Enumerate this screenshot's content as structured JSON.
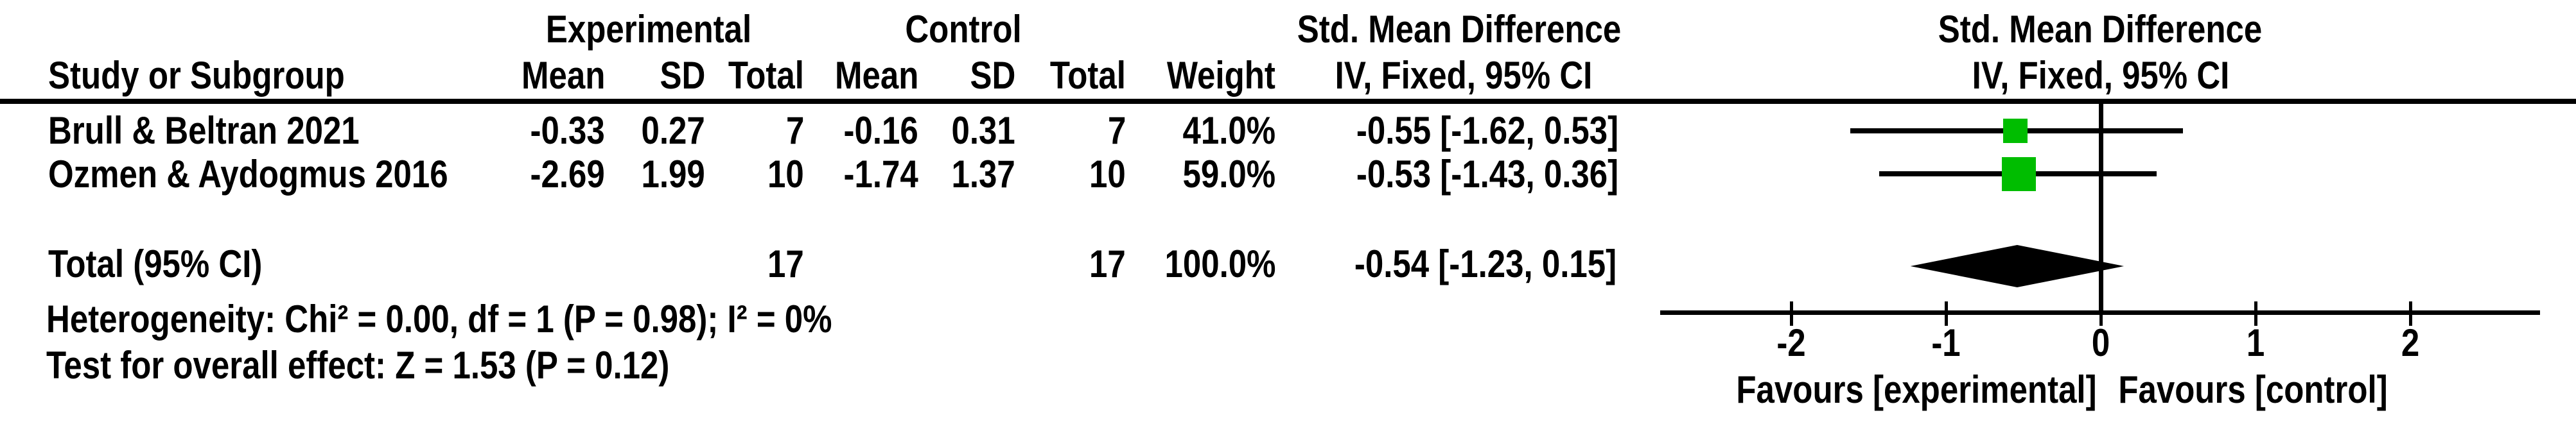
{
  "table": {
    "group_headers": {
      "experimental": "Experimental",
      "control": "Control",
      "smd_text": "Std. Mean Difference",
      "smd_plot": "Std. Mean Difference"
    },
    "columns": {
      "study": "Study or Subgroup",
      "mean_e": "Mean",
      "sd_e": "SD",
      "total_e": "Total",
      "mean_c": "Mean",
      "sd_c": "SD",
      "total_c": "Total",
      "weight": "Weight",
      "ci_text": "IV, Fixed, 95% CI",
      "ci_plot": "IV, Fixed, 95% CI"
    },
    "rows": [
      {
        "study": "Brull & Beltran 2021",
        "mean_e": "-0.33",
        "sd_e": "0.27",
        "total_e": "7",
        "mean_c": "-0.16",
        "sd_c": "0.31",
        "total_c": "7",
        "weight": "41.0%",
        "ci": "-0.55 [-1.62, 0.53]"
      },
      {
        "study": "Ozmen & Aydogmus 2016",
        "mean_e": "-2.69",
        "sd_e": "1.99",
        "total_e": "10",
        "mean_c": "-1.74",
        "sd_c": "1.37",
        "total_c": "10",
        "weight": "59.0%",
        "ci": "-0.53 [-1.43, 0.36]"
      }
    ],
    "total": {
      "label": "Total (95% CI)",
      "total_e": "17",
      "total_c": "17",
      "weight": "100.0%",
      "ci": "-0.54 [-1.23, 0.15]"
    },
    "heterogeneity": "Heterogeneity: Chi² = 0.00, df = 1 (P = 0.98); I² = 0%",
    "overall_effect": "Test for overall effect: Z = 1.53 (P = 0.12)"
  },
  "plot": {
    "favours_left": "Favours [experimental]",
    "favours_right": "Favours [control]",
    "square_color": "#00BD00",
    "line_color": "#000000"
  },
  "chart_data": {
    "type": "forest",
    "effect_measure": "Std. Mean Difference, IV, Fixed, 95% CI",
    "studies": [
      {
        "name": "Brull & Beltran 2021",
        "experimental": {
          "mean": -0.33,
          "sd": 0.27,
          "total": 7
        },
        "control": {
          "mean": -0.16,
          "sd": 0.31,
          "total": 7
        },
        "weight_pct": 41.0,
        "smd": -0.55,
        "ci_low": -1.62,
        "ci_high": 0.53
      },
      {
        "name": "Ozmen & Aydogmus 2016",
        "experimental": {
          "mean": -2.69,
          "sd": 1.99,
          "total": 10
        },
        "control": {
          "mean": -1.74,
          "sd": 1.37,
          "total": 10
        },
        "weight_pct": 59.0,
        "smd": -0.53,
        "ci_low": -1.43,
        "ci_high": 0.36
      }
    ],
    "total": {
      "total_e": 17,
      "total_c": 17,
      "weight_pct": 100.0,
      "smd": -0.54,
      "ci_low": -1.23,
      "ci_high": 0.15
    },
    "heterogeneity": {
      "chi2": 0.0,
      "df": 1,
      "p": 0.98,
      "i2_pct": 0
    },
    "overall_effect": {
      "z": 1.53,
      "p": 0.12
    },
    "x_ticks": [
      -2,
      -1,
      0,
      1,
      2
    ],
    "x_tick_labels": [
      "-2",
      "-1",
      "0",
      "1",
      "2"
    ],
    "xlim": [
      -2.85,
      2.85
    ],
    "x_axis_labels": [
      "Favours [experimental]",
      "Favours [control]"
    ],
    "grid": false,
    "legend": false
  }
}
